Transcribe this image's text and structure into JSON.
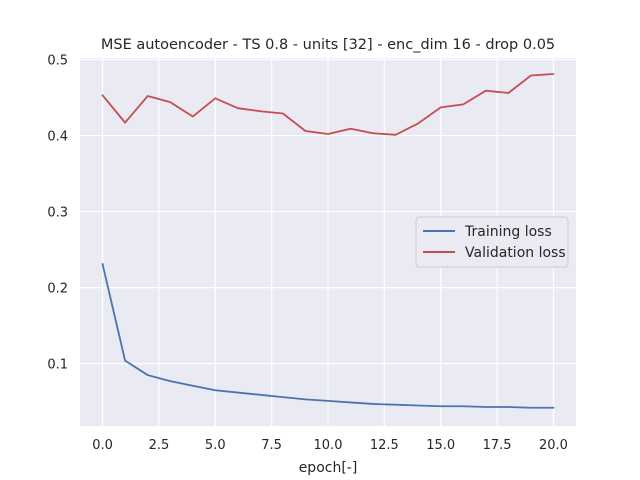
{
  "chart_data": {
    "type": "line",
    "title": "MSE autoencoder - TS 0.8 - units [32] - enc_dim 16 - drop 0.05",
    "xlabel": "epoch[-]",
    "ylabel": "",
    "xlim": [
      -1,
      21
    ],
    "ylim": [
      0.018,
      0.502
    ],
    "xticks": [
      0,
      2.5,
      5,
      7.5,
      10,
      12.5,
      15,
      17.5,
      20
    ],
    "xtick_labels": [
      "0.0",
      "2.5",
      "5.0",
      "7.5",
      "10.0",
      "12.5",
      "15.0",
      "17.5",
      "20.0"
    ],
    "yticks": [
      0.1,
      0.2,
      0.3,
      0.4,
      0.5
    ],
    "ytick_labels": [
      "0.1",
      "0.2",
      "0.3",
      "0.4",
      "0.5"
    ],
    "grid": true,
    "legend_position": "center-right",
    "background": "#eaeaf2",
    "x": [
      0,
      1,
      2,
      3,
      4,
      5,
      6,
      7,
      8,
      9,
      10,
      11,
      12,
      13,
      14,
      15,
      16,
      17,
      18,
      19,
      20
    ],
    "series": [
      {
        "name": "Training loss",
        "color": "#4c72b0",
        "values": [
          0.231,
          0.104,
          0.085,
          0.077,
          0.071,
          0.065,
          0.062,
          0.059,
          0.056,
          0.053,
          0.051,
          0.049,
          0.047,
          0.046,
          0.045,
          0.044,
          0.044,
          0.043,
          0.043,
          0.042,
          0.042
        ]
      },
      {
        "name": "Validation loss",
        "color": "#c44e52",
        "values": [
          0.453,
          0.417,
          0.452,
          0.444,
          0.425,
          0.449,
          0.436,
          0.432,
          0.429,
          0.406,
          0.402,
          0.409,
          0.403,
          0.401,
          0.416,
          0.437,
          0.441,
          0.459,
          0.456,
          0.479,
          0.481
        ]
      }
    ]
  }
}
